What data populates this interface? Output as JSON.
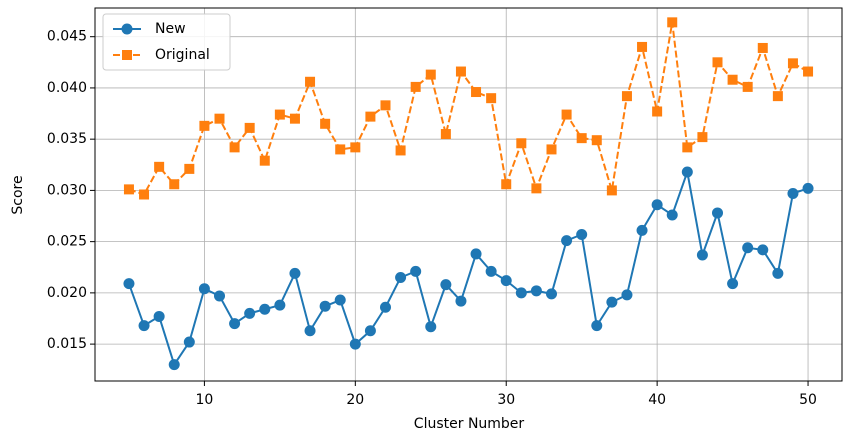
{
  "chart_data": {
    "type": "line",
    "x_label": "Cluster Number",
    "y_label": "Score",
    "x": [
      5,
      6,
      7,
      8,
      9,
      10,
      11,
      12,
      13,
      14,
      15,
      16,
      17,
      18,
      19,
      20,
      21,
      22,
      23,
      24,
      25,
      26,
      27,
      28,
      29,
      30,
      31,
      32,
      33,
      34,
      35,
      36,
      37,
      38,
      39,
      40,
      41,
      42,
      43,
      44,
      45,
      46,
      47,
      48,
      49,
      50
    ],
    "series": [
      {
        "name": "New",
        "color": "#1f77b4",
        "marker": "circle",
        "linestyle": "solid",
        "values": [
          0.0209,
          0.0168,
          0.0177,
          0.013,
          0.0152,
          0.0204,
          0.0197,
          0.017,
          0.018,
          0.0184,
          0.0188,
          0.0219,
          0.0163,
          0.0187,
          0.0193,
          0.015,
          0.0163,
          0.0186,
          0.0215,
          0.0221,
          0.0167,
          0.0208,
          0.0192,
          0.0238,
          0.0221,
          0.0212,
          0.02,
          0.0202,
          0.0199,
          0.0251,
          0.0257,
          0.0168,
          0.0191,
          0.0198,
          0.0261,
          0.0286,
          0.0276,
          0.0318,
          0.0237,
          0.0278,
          0.0209,
          0.0244,
          0.0242,
          0.0219,
          0.0297,
          0.0302
        ]
      },
      {
        "name": "Original",
        "color": "#ff7f0e",
        "marker": "square",
        "linestyle": "dashed",
        "values": [
          0.0301,
          0.0296,
          0.0323,
          0.0306,
          0.0321,
          0.0363,
          0.037,
          0.0342,
          0.0361,
          0.0329,
          0.0374,
          0.037,
          0.0406,
          0.0365,
          0.034,
          0.0342,
          0.0372,
          0.0383,
          0.0339,
          0.0401,
          0.0413,
          0.0355,
          0.0416,
          0.0396,
          0.039,
          0.0306,
          0.0346,
          0.0302,
          0.034,
          0.0374,
          0.0351,
          0.0349,
          0.03,
          0.0392,
          0.044,
          0.0377,
          0.0464,
          0.0342,
          0.0352,
          0.0425,
          0.0408,
          0.0401,
          0.0439,
          0.0392,
          0.0424,
          0.0416
        ]
      }
    ],
    "xlim": [
      2.75,
      52.25
    ],
    "xticks": [
      10,
      20,
      30,
      40,
      50
    ],
    "ylim": [
      0.0114,
      0.0478
    ],
    "yticks": [
      0.015,
      {
        "value": 0.02,
        "label": "0.020"
      },
      0.025,
      {
        "value": 0.03,
        "label": "0.030"
      },
      0.035,
      {
        "value": 0.04,
        "label": "0.040"
      },
      0.045
    ],
    "grid": true,
    "legend": "upper left"
  }
}
